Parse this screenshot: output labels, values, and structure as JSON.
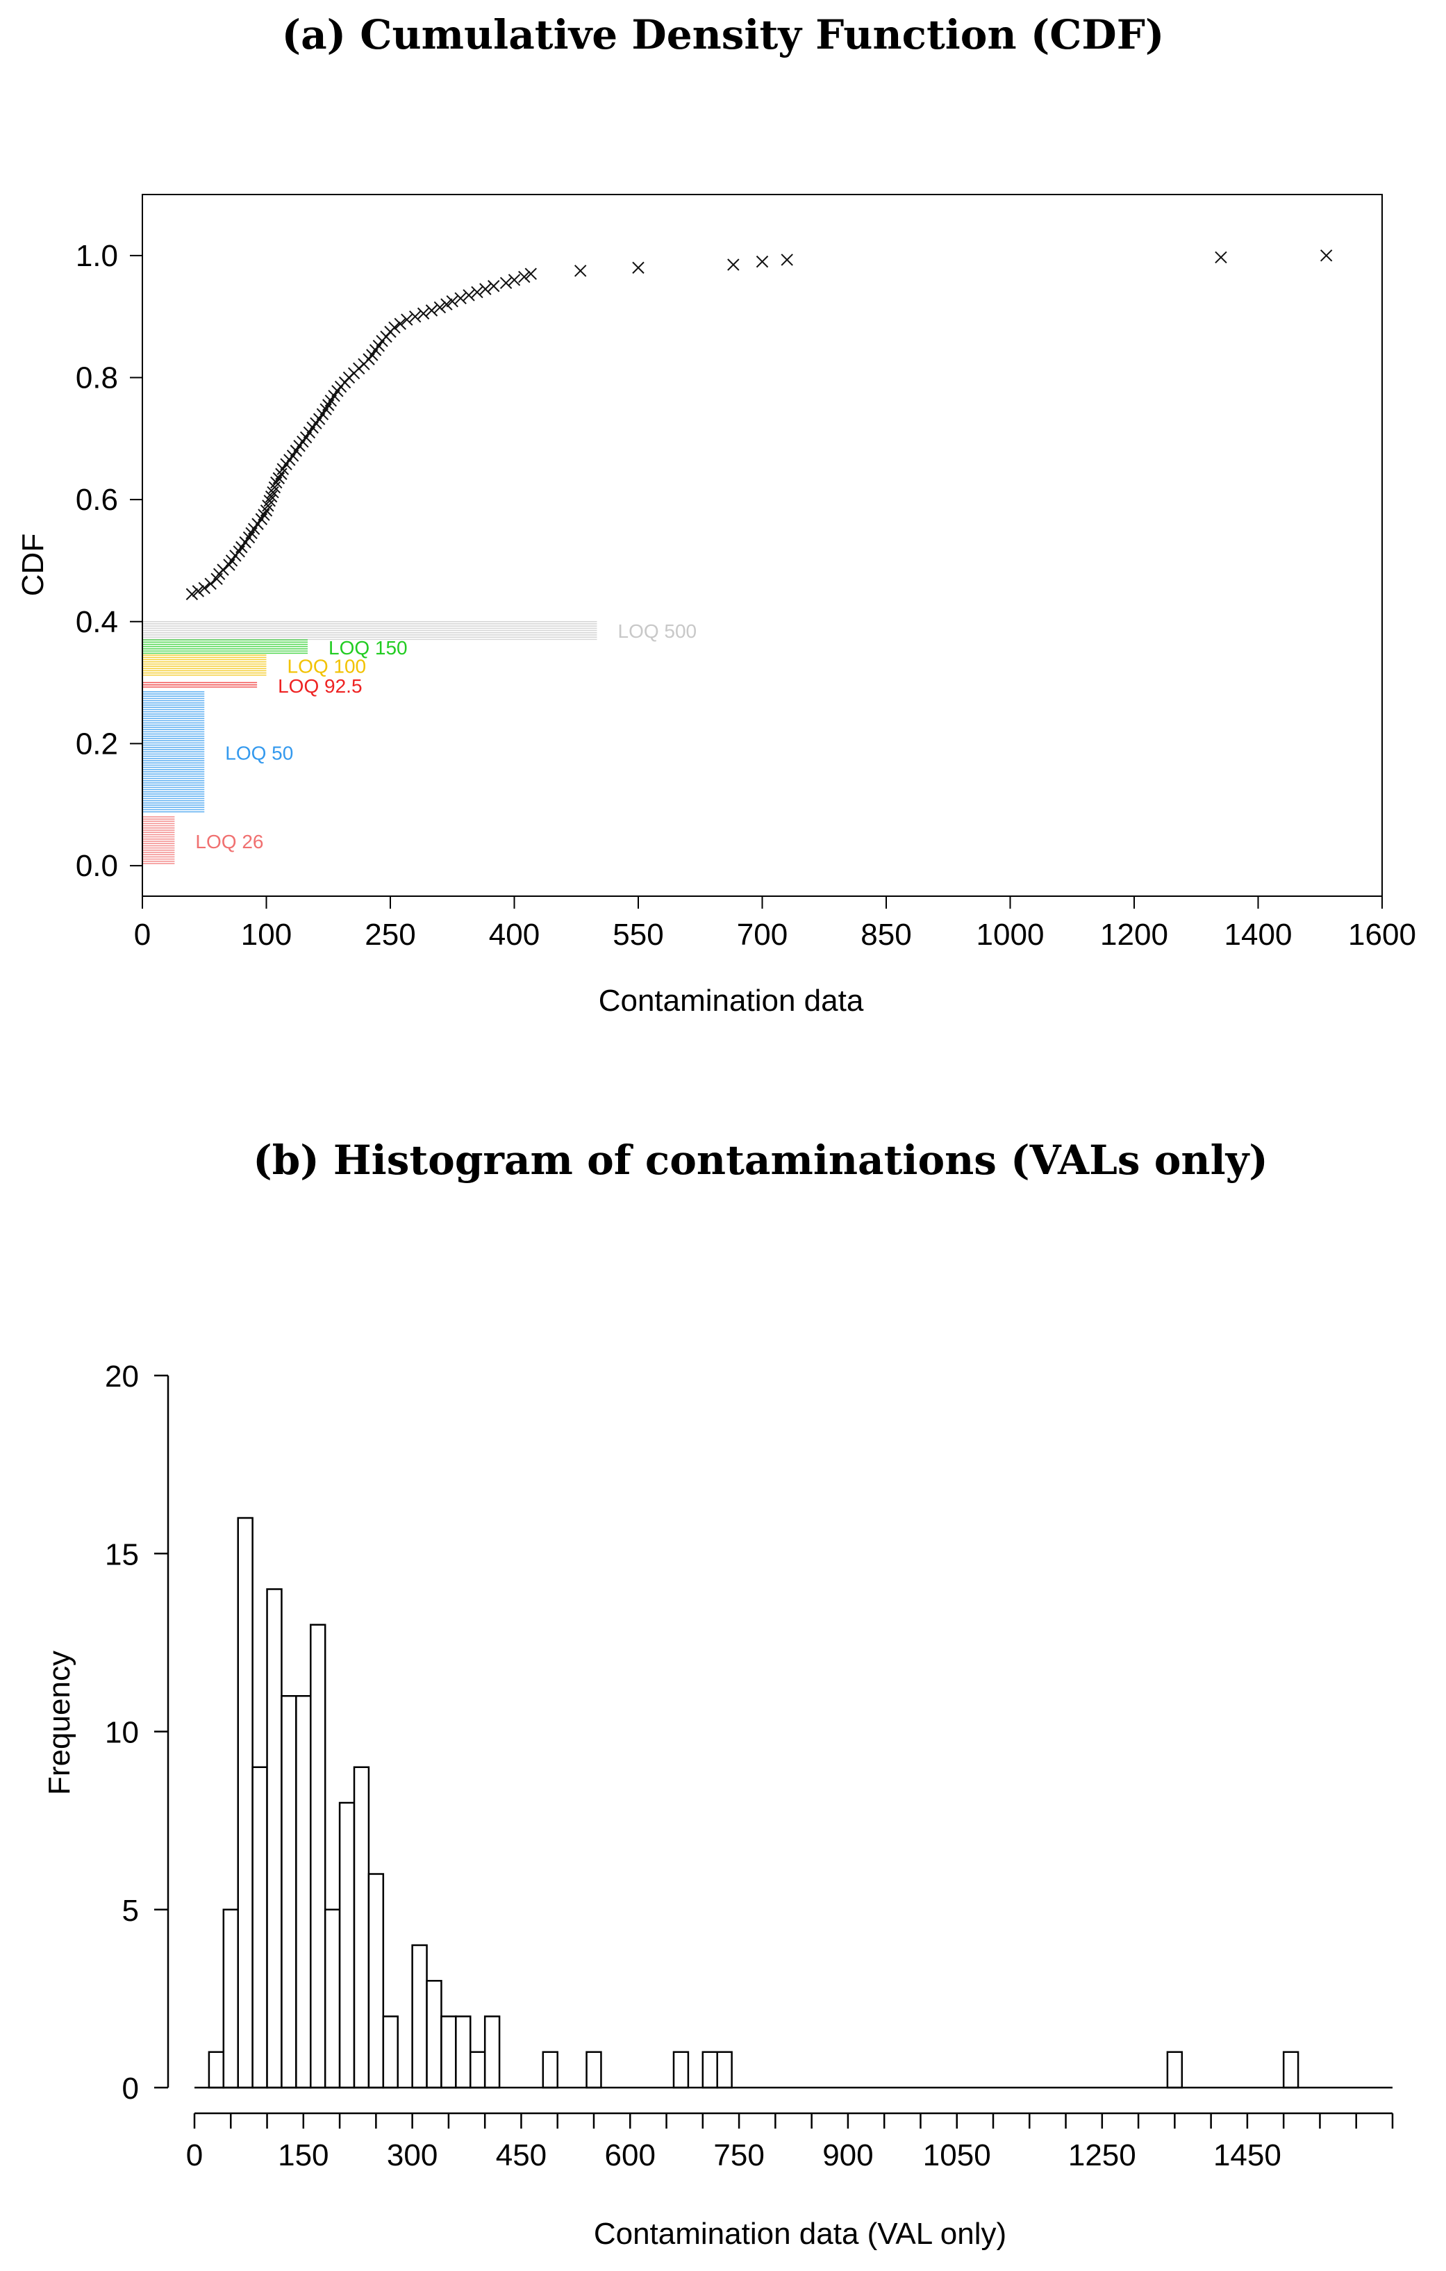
{
  "chart_data": [
    {
      "type": "scatter",
      "title": "(a) Cumulative Density Function (CDF)",
      "xlabel": "Contamination data",
      "ylabel": "CDF",
      "x_axis_breaks": [
        0,
        100,
        250,
        400,
        550,
        700,
        850,
        1000,
        1200,
        1400,
        1600
      ],
      "x_tick_labels": [
        "0",
        "100",
        "250",
        "400",
        "550",
        "700",
        "850",
        "1000",
        "1200",
        "1400",
        "1600"
      ],
      "y_tick_labels": [
        "0.0",
        "0.2",
        "0.4",
        "0.6",
        "0.8",
        "1.0"
      ],
      "ylim": [
        -0.05,
        1.1
      ],
      "marker": "x",
      "points": [
        [
          40,
          0.445
        ],
        [
          45,
          0.45
        ],
        [
          50,
          0.455
        ],
        [
          55,
          0.462
        ],
        [
          60,
          0.47
        ],
        [
          62,
          0.478
        ],
        [
          65,
          0.485
        ],
        [
          70,
          0.493
        ],
        [
          72,
          0.5
        ],
        [
          75,
          0.508
        ],
        [
          78,
          0.515
        ],
        [
          80,
          0.522
        ],
        [
          83,
          0.53
        ],
        [
          86,
          0.538
        ],
        [
          88,
          0.545
        ],
        [
          90,
          0.552
        ],
        [
          93,
          0.56
        ],
        [
          96,
          0.568
        ],
        [
          98,
          0.575
        ],
        [
          100,
          0.582
        ],
        [
          102,
          0.59
        ],
        [
          104,
          0.598
        ],
        [
          106,
          0.605
        ],
        [
          108,
          0.612
        ],
        [
          110,
          0.62
        ],
        [
          112,
          0.628
        ],
        [
          115,
          0.635
        ],
        [
          118,
          0.642
        ],
        [
          120,
          0.65
        ],
        [
          124,
          0.658
        ],
        [
          128,
          0.665
        ],
        [
          132,
          0.672
        ],
        [
          136,
          0.68
        ],
        [
          140,
          0.688
        ],
        [
          144,
          0.695
        ],
        [
          148,
          0.702
        ],
        [
          152,
          0.71
        ],
        [
          156,
          0.718
        ],
        [
          160,
          0.725
        ],
        [
          164,
          0.732
        ],
        [
          168,
          0.74
        ],
        [
          172,
          0.748
        ],
        [
          175,
          0.755
        ],
        [
          178,
          0.762
        ],
        [
          182,
          0.77
        ],
        [
          186,
          0.778
        ],
        [
          190,
          0.785
        ],
        [
          195,
          0.792
        ],
        [
          200,
          0.8
        ],
        [
          206,
          0.807
        ],
        [
          212,
          0.815
        ],
        [
          218,
          0.822
        ],
        [
          224,
          0.83
        ],
        [
          228,
          0.837
        ],
        [
          232,
          0.845
        ],
        [
          236,
          0.852
        ],
        [
          240,
          0.86
        ],
        [
          245,
          0.867
        ],
        [
          250,
          0.875
        ],
        [
          255,
          0.882
        ],
        [
          262,
          0.888
        ],
        [
          270,
          0.895
        ],
        [
          280,
          0.9
        ],
        [
          290,
          0.905
        ],
        [
          300,
          0.91
        ],
        [
          310,
          0.915
        ],
        [
          318,
          0.92
        ],
        [
          325,
          0.925
        ],
        [
          335,
          0.93
        ],
        [
          345,
          0.935
        ],
        [
          355,
          0.94
        ],
        [
          365,
          0.945
        ],
        [
          375,
          0.95
        ],
        [
          390,
          0.955
        ],
        [
          400,
          0.96
        ],
        [
          412,
          0.965
        ],
        [
          420,
          0.97
        ],
        [
          480,
          0.975
        ],
        [
          550,
          0.98
        ],
        [
          665,
          0.985
        ],
        [
          700,
          0.99
        ],
        [
          730,
          0.993
        ],
        [
          1340,
          0.997
        ],
        [
          1510,
          1.0
        ]
      ],
      "loq_bands": [
        {
          "label": "LOQ 500",
          "x": 500,
          "y_from": 0.37,
          "y_to": 0.4,
          "color": "#c8c8c8"
        },
        {
          "label": "LOQ 150",
          "x": 150,
          "y_from": 0.345,
          "y_to": 0.37,
          "color": "#22cc22"
        },
        {
          "label": "LOQ 100",
          "x": 100,
          "y_from": 0.31,
          "y_to": 0.345,
          "color": "#f2c200"
        },
        {
          "label": "LOQ 92.5",
          "x": 92.5,
          "y_from": 0.29,
          "y_to": 0.3,
          "color": "#ee2222"
        },
        {
          "label": "LOQ 50",
          "x": 50,
          "y_from": 0.085,
          "y_to": 0.285,
          "color": "#3399ee"
        },
        {
          "label": "LOQ 26",
          "x": 26,
          "y_from": 0.0,
          "y_to": 0.08,
          "color": "#f07070"
        }
      ]
    },
    {
      "type": "bar",
      "title": "(b) Histogram of contaminations (VALs only)",
      "xlabel": "Contamination data (VAL only)",
      "ylabel": "Frequency",
      "bin_width": 20,
      "x_tick_labels": [
        "0",
        "150",
        "300",
        "450",
        "600",
        "750",
        "900",
        "1050",
        "1250",
        "1450"
      ],
      "y_tick_labels": [
        "0",
        "5",
        "10",
        "15",
        "20"
      ],
      "ylim": [
        0,
        20
      ],
      "bins": [
        {
          "start": 20,
          "count": 1
        },
        {
          "start": 40,
          "count": 5
        },
        {
          "start": 60,
          "count": 16
        },
        {
          "start": 80,
          "count": 9
        },
        {
          "start": 100,
          "count": 14
        },
        {
          "start": 120,
          "count": 11
        },
        {
          "start": 140,
          "count": 11
        },
        {
          "start": 160,
          "count": 13
        },
        {
          "start": 180,
          "count": 5
        },
        {
          "start": 200,
          "count": 8
        },
        {
          "start": 220,
          "count": 9
        },
        {
          "start": 240,
          "count": 6
        },
        {
          "start": 260,
          "count": 2
        },
        {
          "start": 300,
          "count": 4
        },
        {
          "start": 320,
          "count": 3
        },
        {
          "start": 340,
          "count": 2
        },
        {
          "start": 360,
          "count": 2
        },
        {
          "start": 380,
          "count": 1
        },
        {
          "start": 400,
          "count": 2
        },
        {
          "start": 480,
          "count": 1
        },
        {
          "start": 540,
          "count": 1
        },
        {
          "start": 660,
          "count": 1
        },
        {
          "start": 700,
          "count": 1
        },
        {
          "start": 720,
          "count": 1
        },
        {
          "start": 1340,
          "count": 1
        },
        {
          "start": 1500,
          "count": 1
        }
      ]
    }
  ]
}
